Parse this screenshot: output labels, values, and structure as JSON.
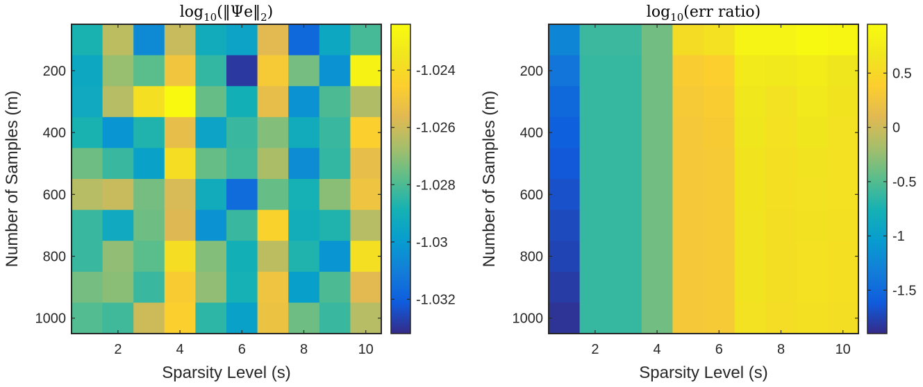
{
  "chart_data": [
    {
      "type": "heatmap",
      "title": "log10(||Ψe||2)",
      "title_parts": {
        "fn": "log",
        "sub": "10",
        "body": "(‖Ψe‖",
        "sub2": "2",
        "close": ")"
      },
      "xlabel": "Sparsity Level (s)",
      "ylabel": "Number of Samples (m)",
      "x": [
        1,
        2,
        3,
        4,
        5,
        6,
        7,
        8,
        9,
        10
      ],
      "y": [
        100,
        200,
        300,
        400,
        500,
        600,
        700,
        800,
        900,
        1000
      ],
      "xticks": [
        "2",
        "4",
        "6",
        "8",
        "10"
      ],
      "yticks": [
        "200",
        "400",
        "600",
        "800",
        "1000"
      ],
      "colormap": "parula",
      "clim": [
        -1.0332,
        -1.0224
      ],
      "colorbar_ticks": [
        "-1.024",
        "-1.026",
        "-1.028",
        "-1.03",
        "-1.032"
      ],
      "colorbar_tick_values": [
        -1.024,
        -1.026,
        -1.028,
        -1.03,
        -1.032
      ],
      "values": [
        [
          -1.0288,
          -1.0263,
          -1.0306,
          -1.0261,
          -1.0292,
          -1.0296,
          -1.0256,
          -1.0317,
          -1.0294,
          -1.0281
        ],
        [
          -1.0294,
          -1.0269,
          -1.0278,
          -1.025,
          -1.0284,
          -1.0329,
          -1.0248,
          -1.0274,
          -1.0303,
          -1.0228
        ],
        [
          -1.0293,
          -1.0264,
          -1.0238,
          -1.0225,
          -1.0276,
          -1.029,
          -1.0254,
          -1.0303,
          -1.028,
          -1.0265
        ],
        [
          -1.0288,
          -1.0302,
          -1.0287,
          -1.0254,
          -1.0296,
          -1.0283,
          -1.0272,
          -1.0292,
          -1.0283,
          -1.0245
        ],
        [
          -1.0275,
          -1.0283,
          -1.0297,
          -1.0239,
          -1.0276,
          -1.0282,
          -1.0266,
          -1.0305,
          -1.0284,
          -1.0254
        ],
        [
          -1.0264,
          -1.0261,
          -1.0274,
          -1.0258,
          -1.0292,
          -1.0316,
          -1.0276,
          -1.0289,
          -1.0271,
          -1.0251
        ],
        [
          -1.0283,
          -1.0293,
          -1.0275,
          -1.0257,
          -1.0303,
          -1.0283,
          -1.0244,
          -1.0291,
          -1.0287,
          -1.0264
        ],
        [
          -1.0283,
          -1.027,
          -1.0278,
          -1.0239,
          -1.0272,
          -1.029,
          -1.0263,
          -1.0287,
          -1.0302,
          -1.0238
        ],
        [
          -1.0274,
          -1.0271,
          -1.0283,
          -1.0247,
          -1.027,
          -1.0289,
          -1.0251,
          -1.0298,
          -1.028,
          -1.0256
        ],
        [
          -1.0279,
          -1.0282,
          -1.026,
          -1.0245,
          -1.0285,
          -1.0297,
          -1.0252,
          -1.0275,
          -1.0283,
          -1.0264
        ]
      ]
    },
    {
      "type": "heatmap",
      "title": "log10(err ratio)",
      "title_parts": {
        "fn": "log",
        "sub": "10",
        "body": "(err ratio)"
      },
      "xlabel": "Sparsity Level (s)",
      "ylabel": "Number of Samples (m)",
      "x": [
        1,
        2,
        3,
        4,
        5,
        6,
        7,
        8,
        9,
        10
      ],
      "y": [
        100,
        200,
        300,
        400,
        500,
        600,
        700,
        800,
        900,
        1000
      ],
      "xticks": [
        "2",
        "4",
        "6",
        "8",
        "10"
      ],
      "yticks": [
        "200",
        "400",
        "600",
        "800",
        "1000"
      ],
      "colormap": "parula",
      "clim": [
        -1.9,
        0.95
      ],
      "colorbar_ticks": [
        "0.5",
        "0",
        "-0.5",
        "-1",
        "-1.5"
      ],
      "colorbar_tick_values": [
        0.5,
        0,
        -0.5,
        -1,
        -1.5
      ],
      "values": [
        [
          -1.25,
          -0.6,
          -0.6,
          -0.38,
          0.55,
          0.6,
          0.85,
          0.85,
          0.92,
          0.88
        ],
        [
          -1.4,
          -0.62,
          -0.62,
          -0.38,
          0.35,
          0.38,
          0.72,
          0.7,
          0.75,
          0.66
        ],
        [
          -1.5,
          -0.62,
          -0.62,
          -0.38,
          0.32,
          0.35,
          0.68,
          0.62,
          0.7,
          0.64
        ],
        [
          -1.58,
          -0.62,
          -0.62,
          -0.38,
          0.3,
          0.33,
          0.66,
          0.6,
          0.66,
          0.62
        ],
        [
          -1.63,
          -0.62,
          -0.62,
          -0.38,
          0.3,
          0.32,
          0.64,
          0.58,
          0.63,
          0.6
        ],
        [
          -1.68,
          -0.62,
          -0.62,
          -0.38,
          0.3,
          0.32,
          0.64,
          0.58,
          0.62,
          0.6
        ],
        [
          -1.72,
          -0.62,
          -0.62,
          -0.38,
          0.3,
          0.32,
          0.63,
          0.57,
          0.61,
          0.59
        ],
        [
          -1.75,
          -0.62,
          -0.62,
          -0.38,
          0.3,
          0.32,
          0.63,
          0.57,
          0.6,
          0.58
        ],
        [
          -1.8,
          -0.62,
          -0.62,
          -0.38,
          0.3,
          0.32,
          0.63,
          0.57,
          0.6,
          0.58
        ],
        [
          -1.85,
          -0.62,
          -0.62,
          -0.38,
          0.3,
          0.32,
          0.62,
          0.56,
          0.59,
          0.57
        ]
      ]
    }
  ]
}
